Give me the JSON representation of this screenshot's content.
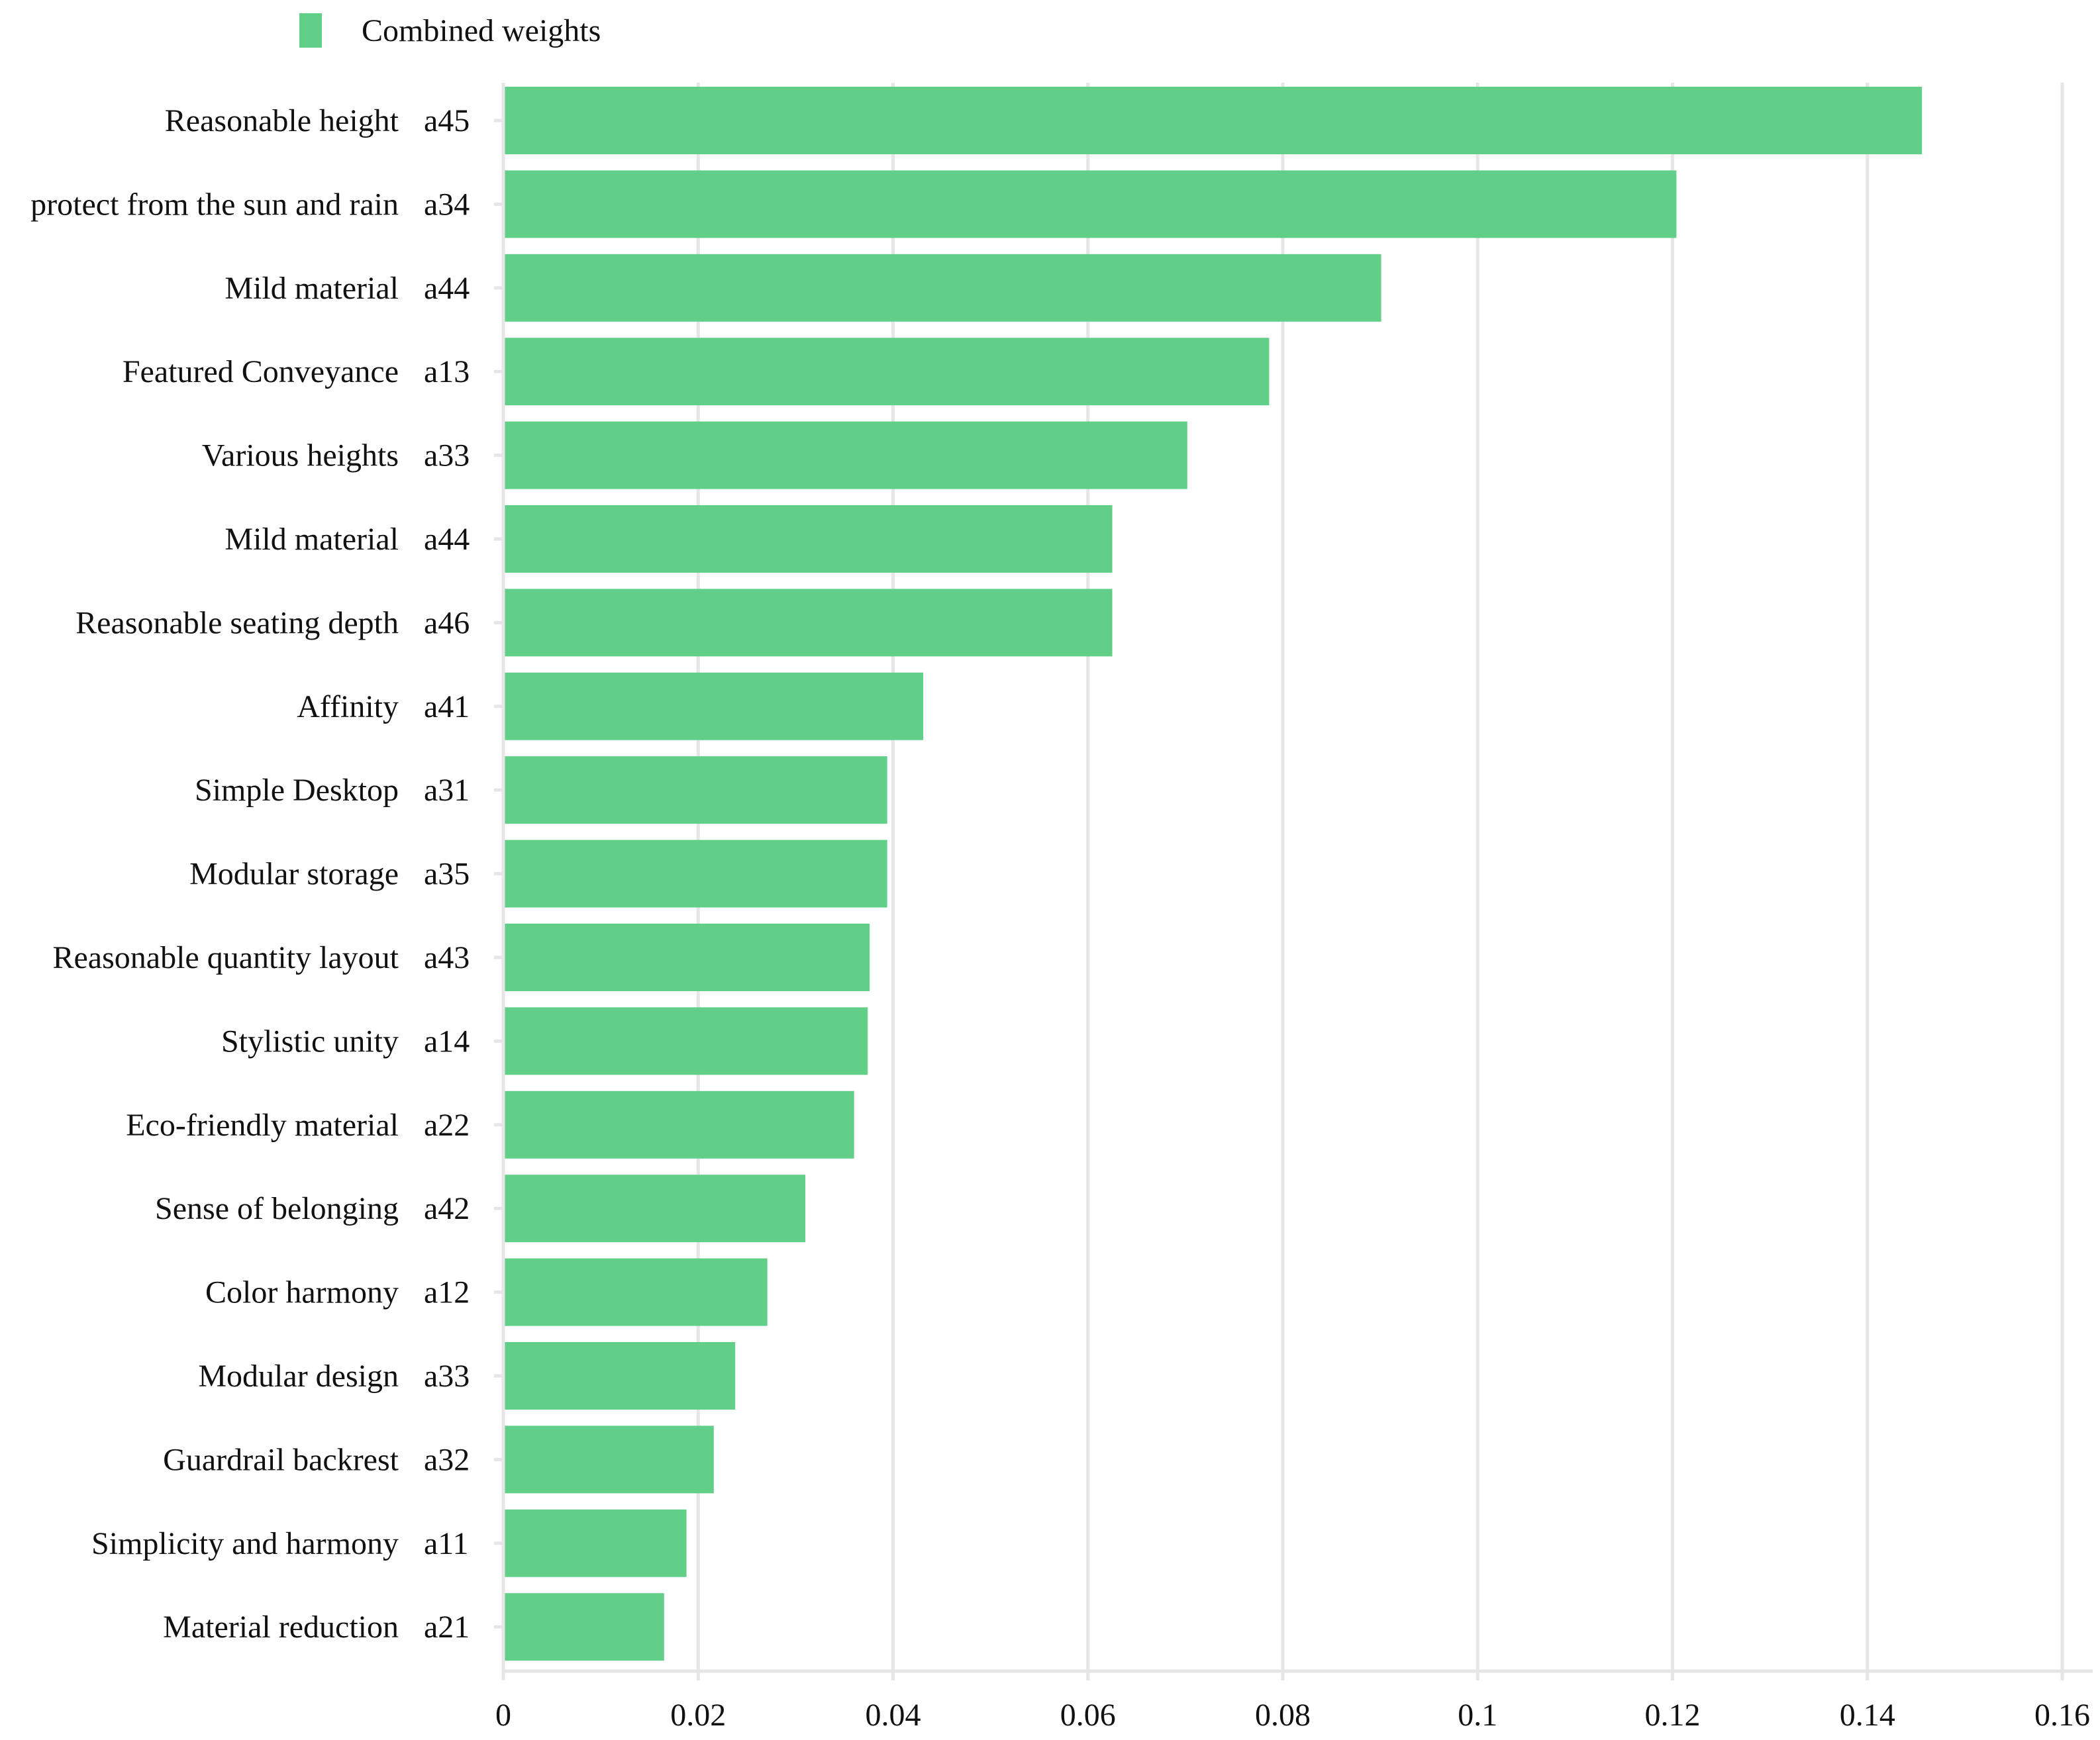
{
  "legend": {
    "label": "Combined weights",
    "color": "#62cf88"
  },
  "colors": {
    "bar": "#62cf88",
    "grid": "#e6e6e6",
    "text": "#111111"
  },
  "chart_data": {
    "type": "bar",
    "orientation": "horizontal",
    "legend_position": "top-left",
    "grid": true,
    "xlim": [
      0,
      0.16
    ],
    "xticks": [
      0,
      0.02,
      0.04,
      0.06,
      0.08,
      0.1,
      0.12,
      0.14,
      0.16
    ],
    "xtick_labels": [
      "0",
      "0.02",
      "0.04",
      "0.06",
      "0.08",
      "0.1",
      "0.12",
      "0.14",
      "0.16"
    ],
    "categories": [
      {
        "name": "Reasonable height",
        "code": "a45"
      },
      {
        "name": "protect from the sun and rain",
        "code": "a34"
      },
      {
        "name": "Mild material",
        "code": "a44"
      },
      {
        "name": "Featured Conveyance",
        "code": "a13"
      },
      {
        "name": "Various heights",
        "code": "a33"
      },
      {
        "name": "Mild material",
        "code": "a44"
      },
      {
        "name": "Reasonable seating depth",
        "code": "a46"
      },
      {
        "name": "Affinity",
        "code": "a41"
      },
      {
        "name": "Simple Desktop",
        "code": "a31"
      },
      {
        "name": "Modular storage",
        "code": "a35"
      },
      {
        "name": "Reasonable quantity layout",
        "code": "a43"
      },
      {
        "name": "Stylistic unity",
        "code": "a14"
      },
      {
        "name": "Eco-friendly material",
        "code": "a22"
      },
      {
        "name": "Sense of belonging",
        "code": "a42"
      },
      {
        "name": "Color harmony",
        "code": "a12"
      },
      {
        "name": "Modular design",
        "code": "a33"
      },
      {
        "name": "Guardrail backrest",
        "code": "a32"
      },
      {
        "name": "Simplicity and harmony",
        "code": "a11"
      },
      {
        "name": "Material reduction",
        "code": "a21"
      }
    ],
    "series": [
      {
        "name": "Combined weights",
        "values": [
          0.1456,
          0.1204,
          0.0901,
          0.0786,
          0.0702,
          0.0625,
          0.0625,
          0.0431,
          0.0394,
          0.0394,
          0.0376,
          0.0374,
          0.036,
          0.031,
          0.0271,
          0.0238,
          0.0216,
          0.0188,
          0.0165
        ]
      }
    ]
  }
}
